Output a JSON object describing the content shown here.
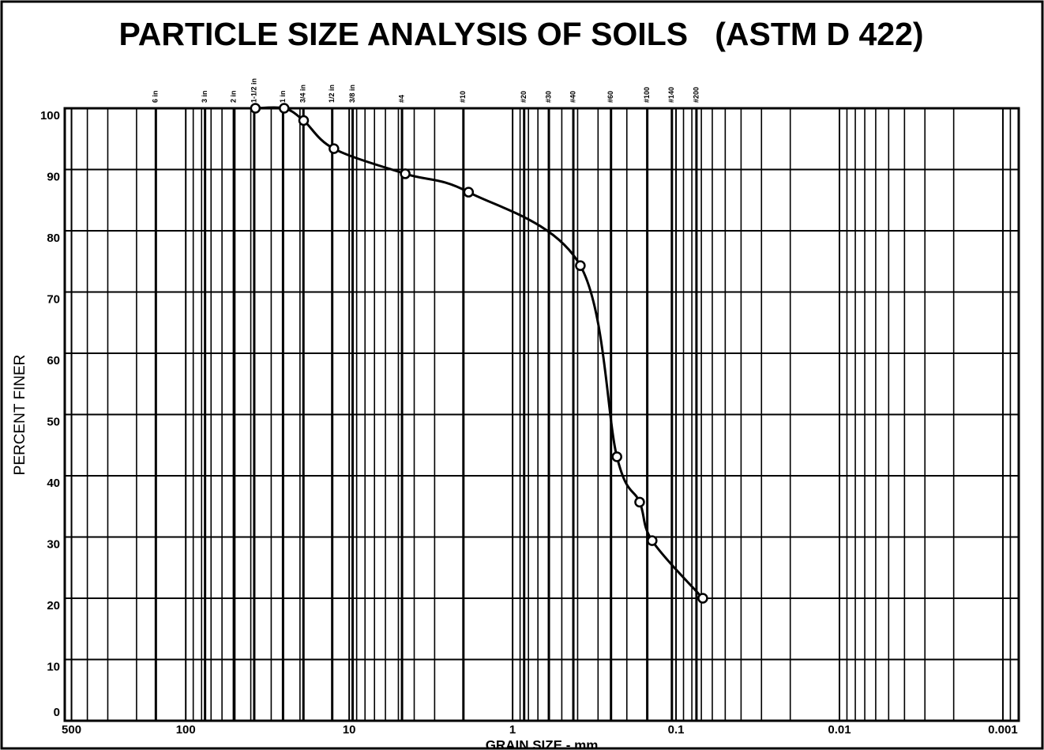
{
  "chart_data": {
    "type": "line",
    "title": "PARTICLE SIZE ANALYSIS OF SOILS   (ASTM D 422)",
    "xlabel": "GRAIN SIZE - mm",
    "ylabel": "PERCENT FINER",
    "x": [
      37.5,
      25,
      19,
      12.4,
      4.54,
      1.86,
      0.385,
      0.23,
      0.167,
      0.14,
      0.0686
    ],
    "values": [
      100,
      100,
      98,
      93.4,
      89.3,
      86.3,
      74.3,
      43.1,
      35.7,
      29.4,
      20
    ],
    "color": "#000000",
    "log_x": true,
    "x_reversed": true,
    "minor_grid": true,
    "xlim": [
      550,
      0.0008
    ],
    "xticks": [
      500,
      100,
      10,
      1,
      0.1,
      0.01,
      0.001
    ],
    "ylim": [
      0,
      100
    ],
    "yticks": [
      0,
      10,
      20,
      30,
      40,
      50,
      60,
      70,
      80,
      90,
      100
    ],
    "grid": true,
    "sieves": {
      "labels": [
        "6 in",
        "3 in",
        "2 in",
        "1-1/2 in",
        "1 in",
        "3/4 in",
        "1/2 in",
        "3/8 in",
        "#4",
        "#10",
        "#20",
        "#30",
        "#40",
        "#60",
        "#100",
        "#140",
        "#200"
      ],
      "sizes": [
        152.4,
        76.2,
        50.8,
        38.1,
        25.4,
        19.05,
        12.7,
        9.525,
        4.75,
        2.0,
        0.85,
        0.6,
        0.425,
        0.25,
        0.15,
        0.106,
        0.075
      ]
    }
  }
}
